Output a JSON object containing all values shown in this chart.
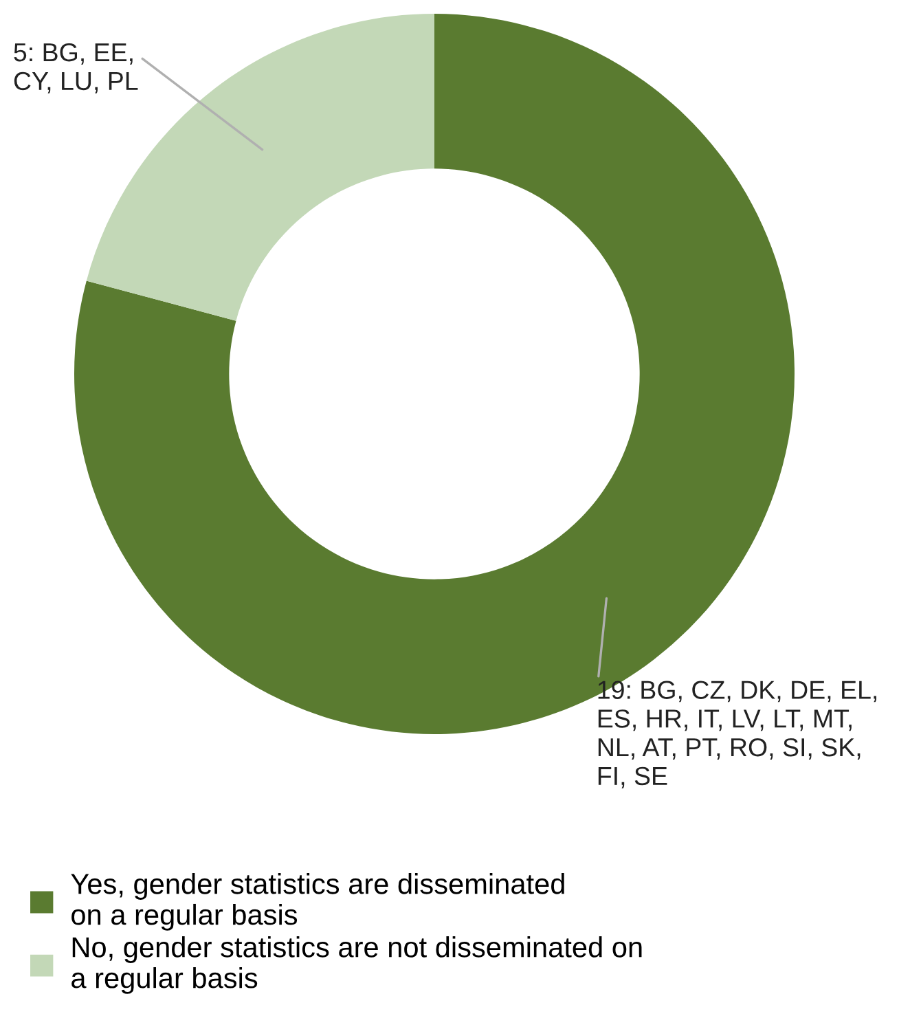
{
  "chart_data": {
    "type": "donut",
    "categories": [
      "Yes, gender statistics are disseminated\non a regular basis",
      "No, gender statistics are not disseminated on\na regular basis"
    ],
    "values": [
      19,
      5
    ],
    "colors": [
      "#5a7b30",
      "#c3d8b7"
    ],
    "value_labels": [
      "19: BG, CZ, DK, DE, EL,\nES, HR, IT, LV, LT, MT,\nNL, AT, PT, RO, SI, SK,\nFI, SE",
      "5: BG, EE,\nCY, LU, PL"
    ],
    "legend": "bottom"
  }
}
